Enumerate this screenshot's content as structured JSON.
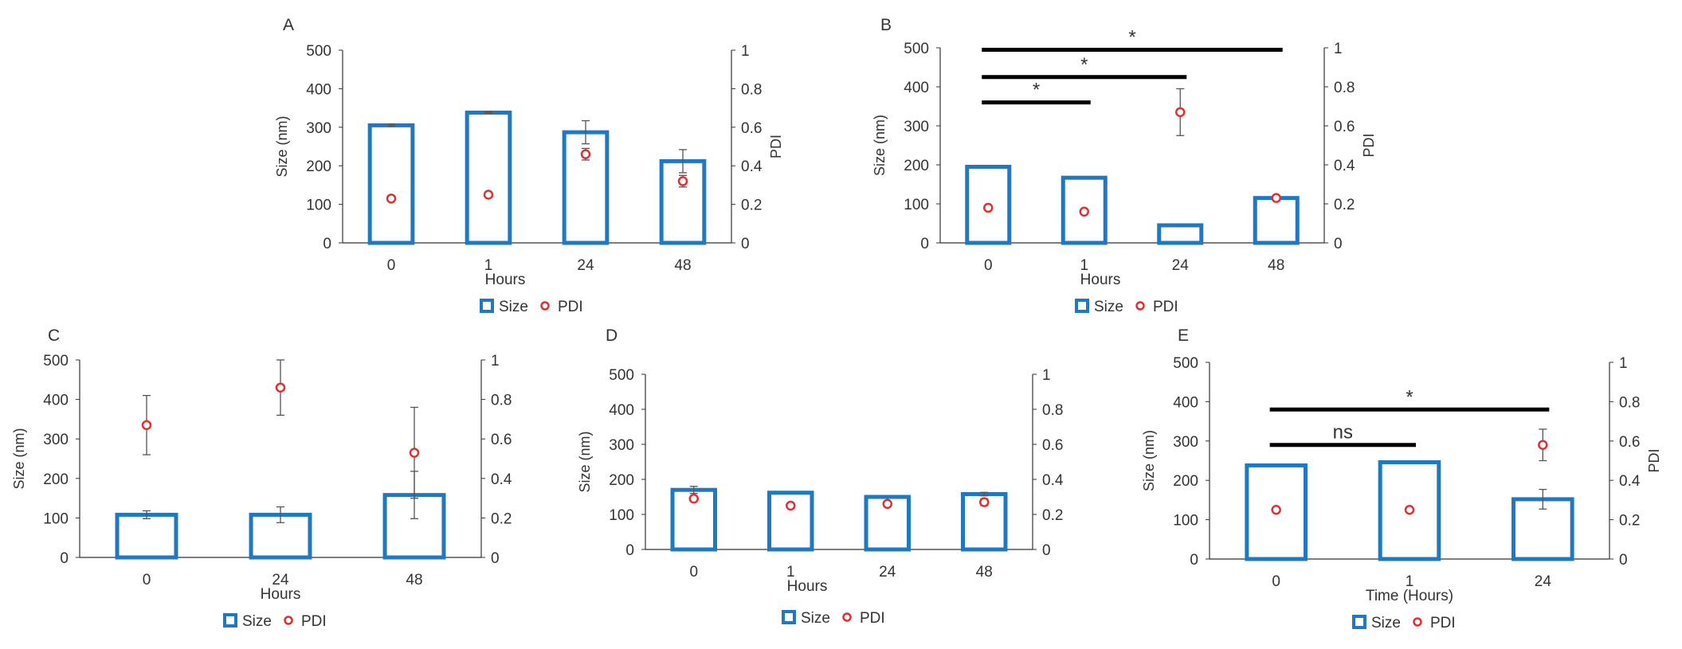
{
  "colors": {
    "bar": "#1f78c1",
    "pdi": "#e03030",
    "axis": "#333333",
    "sig": "#000000"
  },
  "chart_data": [
    {
      "id": "A",
      "panel_label": "A",
      "type": "bar",
      "categories": [
        "0",
        "1",
        "24",
        "48"
      ],
      "xlabel": "Hours",
      "ylabel": "Size (nm)",
      "y2label": "PDI",
      "ylim": [
        0,
        500
      ],
      "yticks": [
        "0",
        "100",
        "200",
        "300",
        "400",
        "500"
      ],
      "y2lim": [
        0,
        1
      ],
      "y2ticks": [
        "0",
        "0.2",
        "0.4",
        "0.6",
        "0.8",
        "1"
      ],
      "series": [
        {
          "name": "Size",
          "axis": "left",
          "values": [
            305,
            338,
            287,
            212
          ],
          "err": [
            3,
            2,
            30,
            30
          ]
        },
        {
          "name": "PDI",
          "axis": "right",
          "values": [
            0.23,
            0.25,
            0.46,
            0.32
          ],
          "err": [
            0,
            0,
            0.03,
            0.03
          ]
        }
      ],
      "legend": [
        "Size",
        "PDI"
      ],
      "sig": []
    },
    {
      "id": "B",
      "panel_label": "B",
      "type": "bar",
      "categories": [
        "0",
        "1",
        "24",
        "48"
      ],
      "xlabel": "Hours",
      "ylabel": "Size (nm)",
      "y2label": "PDI",
      "ylim": [
        0,
        500
      ],
      "yticks": [
        "0",
        "100",
        "200",
        "300",
        "400",
        "500"
      ],
      "y2lim": [
        0,
        1
      ],
      "y2ticks": [
        "0",
        "0.2",
        "0.4",
        "0.6",
        "0.8",
        "1"
      ],
      "series": [
        {
          "name": "Size",
          "axis": "left",
          "values": [
            195,
            167,
            45,
            115
          ],
          "err": [
            0,
            0,
            0,
            0
          ]
        },
        {
          "name": "PDI",
          "axis": "right",
          "values": [
            0.18,
            0.16,
            0.67,
            0.23
          ],
          "err": [
            0,
            0,
            0.12,
            0
          ]
        }
      ],
      "legend": [
        "Size",
        "PDI"
      ],
      "sig": [
        {
          "from": 0,
          "to": 1,
          "y": 360,
          "label": "*"
        },
        {
          "from": 0,
          "to": 2,
          "y": 425,
          "label": "*"
        },
        {
          "from": 0,
          "to": 3,
          "y": 495,
          "label": "*"
        }
      ]
    },
    {
      "id": "C",
      "panel_label": "C",
      "type": "bar",
      "categories": [
        "0",
        "24",
        "48"
      ],
      "xlabel": "Hours",
      "ylabel": "Size (nm)",
      "y2label": "",
      "ylim": [
        0,
        500
      ],
      "yticks": [
        "0",
        "100",
        "200",
        "300",
        "400",
        "500"
      ],
      "y2lim": [
        0,
        1
      ],
      "y2ticks": [
        "0",
        "0.2",
        "0.4",
        "0.6",
        "0.8",
        "1"
      ],
      "series": [
        {
          "name": "Size",
          "axis": "left",
          "values": [
            108,
            108,
            158
          ],
          "err": [
            10,
            20,
            60
          ]
        },
        {
          "name": "PDI",
          "axis": "right",
          "values": [
            0.67,
            0.86,
            0.53
          ],
          "err": [
            0.15,
            0.14,
            0.23
          ]
        }
      ],
      "legend": [
        "Size",
        "PDI"
      ],
      "sig": []
    },
    {
      "id": "D",
      "panel_label": "D",
      "type": "bar",
      "categories": [
        "0",
        "1",
        "24",
        "48"
      ],
      "xlabel": "Hours",
      "ylabel": "Size (nm)",
      "y2label": "",
      "ylim": [
        0,
        500
      ],
      "yticks": [
        "0",
        "100",
        "200",
        "300",
        "400",
        "500"
      ],
      "y2lim": [
        0,
        1
      ],
      "y2ticks": [
        "0",
        "0.2",
        "0.4",
        "0.6",
        "0.8",
        "1"
      ],
      "series": [
        {
          "name": "Size",
          "axis": "left",
          "values": [
            170,
            162,
            150,
            158
          ],
          "err": [
            10,
            0,
            0,
            5
          ]
        },
        {
          "name": "PDI",
          "axis": "right",
          "values": [
            0.29,
            0.25,
            0.26,
            0.27
          ],
          "err": [
            0,
            0,
            0,
            0.02
          ]
        }
      ],
      "legend": [
        "Size",
        "PDI"
      ],
      "sig": []
    },
    {
      "id": "E",
      "panel_label": "E",
      "type": "bar",
      "categories": [
        "0",
        "1",
        "24"
      ],
      "xlabel": "Time (Hours)",
      "ylabel": "Size (nm)",
      "y2label": "PDI",
      "ylim": [
        0,
        500
      ],
      "yticks": [
        "0",
        "100",
        "200",
        "300",
        "400",
        "500"
      ],
      "y2lim": [
        0,
        1
      ],
      "y2ticks": [
        "0",
        "0.2",
        "0.4",
        "0.6",
        "0.8",
        "1"
      ],
      "series": [
        {
          "name": "Size",
          "axis": "left",
          "values": [
            238,
            246,
            152
          ],
          "err": [
            0,
            0,
            25
          ]
        },
        {
          "name": "PDI",
          "axis": "right",
          "values": [
            0.25,
            0.25,
            0.58
          ],
          "err": [
            0,
            0,
            0.08
          ]
        }
      ],
      "legend": [
        "Size",
        "PDI"
      ],
      "sig": [
        {
          "from": 0,
          "to": 1,
          "y": 290,
          "label": "ns"
        },
        {
          "from": 0,
          "to": 2,
          "y": 380,
          "label": "*"
        }
      ]
    }
  ]
}
